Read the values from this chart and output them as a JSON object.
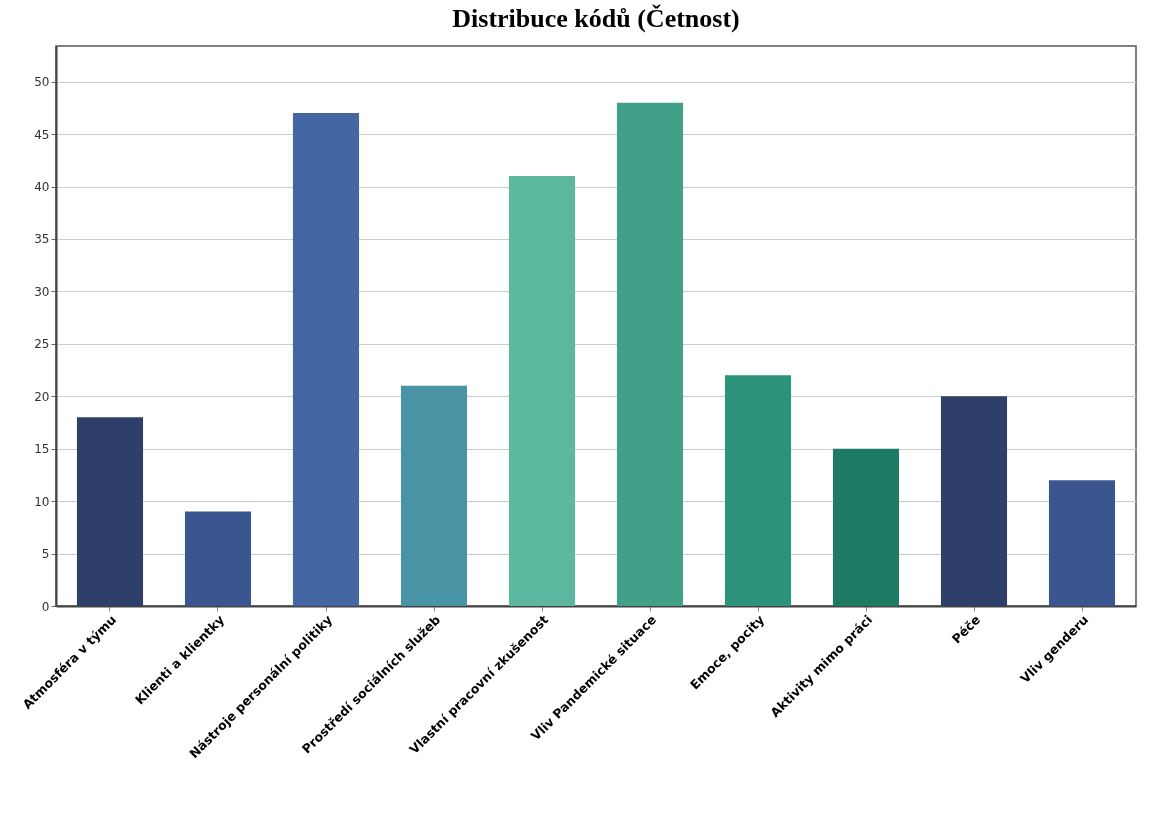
{
  "chart_data": {
    "type": "bar",
    "title": "Distribuce kódů (Četnost)",
    "categories": [
      "Atmosféra v týmu",
      "Klienti a klientky",
      "Nástroje personální politiky",
      "Prostředí sociálních služeb",
      "Vlastní pracovní zkušenost",
      "Vliv Pandemické situace",
      "Emoce, pocity",
      "Aktivity mimo práci",
      "Péče",
      "Vliv genderu"
    ],
    "values": [
      18,
      9,
      47,
      21,
      41,
      48,
      22,
      15,
      20,
      12
    ],
    "colors": [
      "#2e3f6a",
      "#3a5690",
      "#4466a3",
      "#4a95a5",
      "#5cb89e",
      "#42a088",
      "#2c937b",
      "#1e7b63",
      "#2e3f6a",
      "#3b5590"
    ],
    "ylim": [
      0,
      53.4
    ],
    "yticks": [
      0,
      5,
      10,
      15,
      20,
      25,
      30,
      35,
      40,
      45,
      50
    ],
    "grid": "y"
  }
}
